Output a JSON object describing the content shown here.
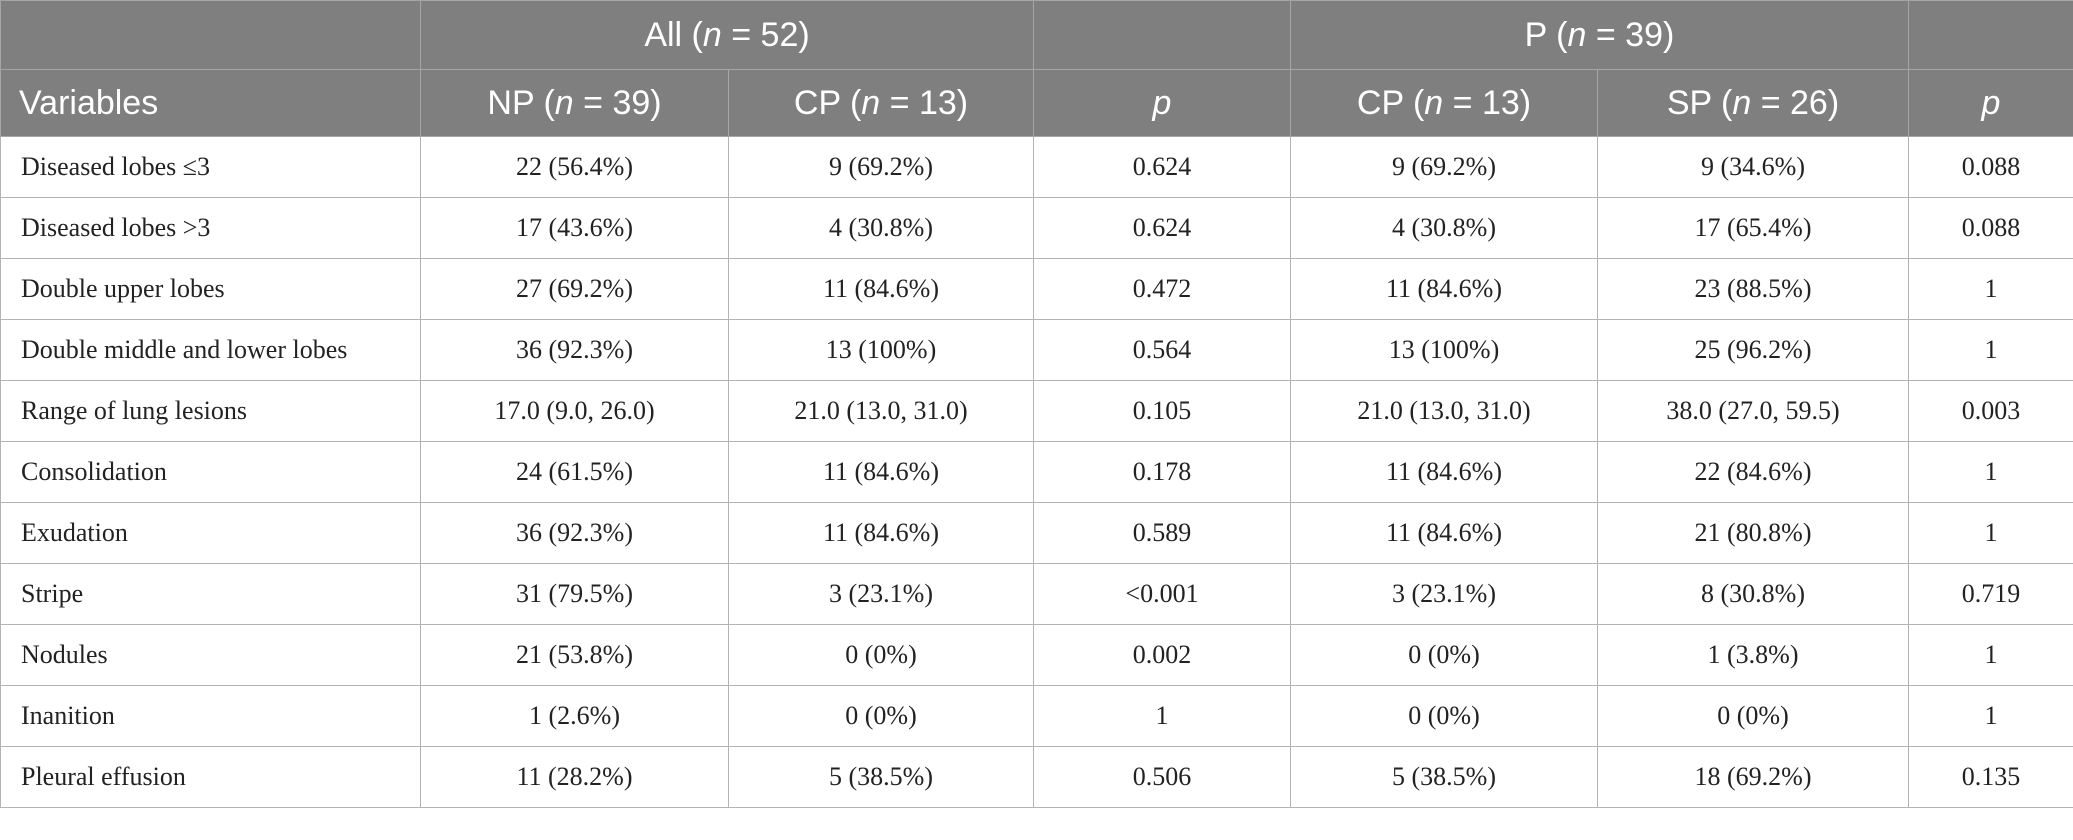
{
  "header": {
    "group_all": {
      "prefix": "All (",
      "n": "n",
      "suffix": " = 52)"
    },
    "group_p": {
      "prefix": "P (",
      "n": "n",
      "suffix": " = 39)"
    },
    "variables_label": "Variables",
    "columns": [
      {
        "prefix": "NP (",
        "n": "n",
        "suffix": " = 39)"
      },
      {
        "prefix": "CP (",
        "n": "n",
        "suffix": " = 13)"
      },
      {
        "p": "p"
      },
      {
        "prefix": "CP (",
        "n": "n",
        "suffix": " = 13)"
      },
      {
        "prefix": "SP (",
        "n": "n",
        "suffix": " = 26)"
      },
      {
        "p": "p"
      }
    ]
  },
  "rows": [
    [
      "Diseased lobes ≤3",
      "22 (56.4%)",
      "9 (69.2%)",
      "0.624",
      "9 (69.2%)",
      "9 (34.6%)",
      "0.088"
    ],
    [
      "Diseased lobes >3",
      "17 (43.6%)",
      "4 (30.8%)",
      "0.624",
      "4 (30.8%)",
      "17 (65.4%)",
      "0.088"
    ],
    [
      "Double upper lobes",
      "27 (69.2%)",
      "11 (84.6%)",
      "0.472",
      "11 (84.6%)",
      "23 (88.5%)",
      "1"
    ],
    [
      "Double middle and lower lobes",
      "36 (92.3%)",
      "13 (100%)",
      "0.564",
      "13 (100%)",
      "25 (96.2%)",
      "1"
    ],
    [
      "Range of lung lesions",
      "17.0 (9.0, 26.0)",
      "21.0 (13.0, 31.0)",
      "0.105",
      "21.0 (13.0, 31.0)",
      "38.0 (27.0, 59.5)",
      "0.003"
    ],
    [
      "Consolidation",
      "24 (61.5%)",
      "11 (84.6%)",
      "0.178",
      "11 (84.6%)",
      "22 (84.6%)",
      "1"
    ],
    [
      "Exudation",
      "36 (92.3%)",
      "11 (84.6%)",
      "0.589",
      "11 (84.6%)",
      "21 (80.8%)",
      "1"
    ],
    [
      "Stripe",
      "31 (79.5%)",
      "3 (23.1%)",
      "<0.001",
      "3 (23.1%)",
      "8 (30.8%)",
      "0.719"
    ],
    [
      "Nodules",
      "21 (53.8%)",
      "0 (0%)",
      "0.002",
      "0 (0%)",
      "1 (3.8%)",
      "1"
    ],
    [
      "Inanition",
      "1 (2.6%)",
      "0 (0%)",
      "1",
      "0 (0%)",
      "0 (0%)",
      "1"
    ],
    [
      "Pleural effusion",
      "11 (28.2%)",
      "5 (38.5%)",
      "0.506",
      "5 (38.5%)",
      "18 (69.2%)",
      "0.135"
    ]
  ],
  "colors": {
    "header_bg": "#7f7f7f",
    "header_text": "#ffffff",
    "grid": "#b3b3b3"
  }
}
